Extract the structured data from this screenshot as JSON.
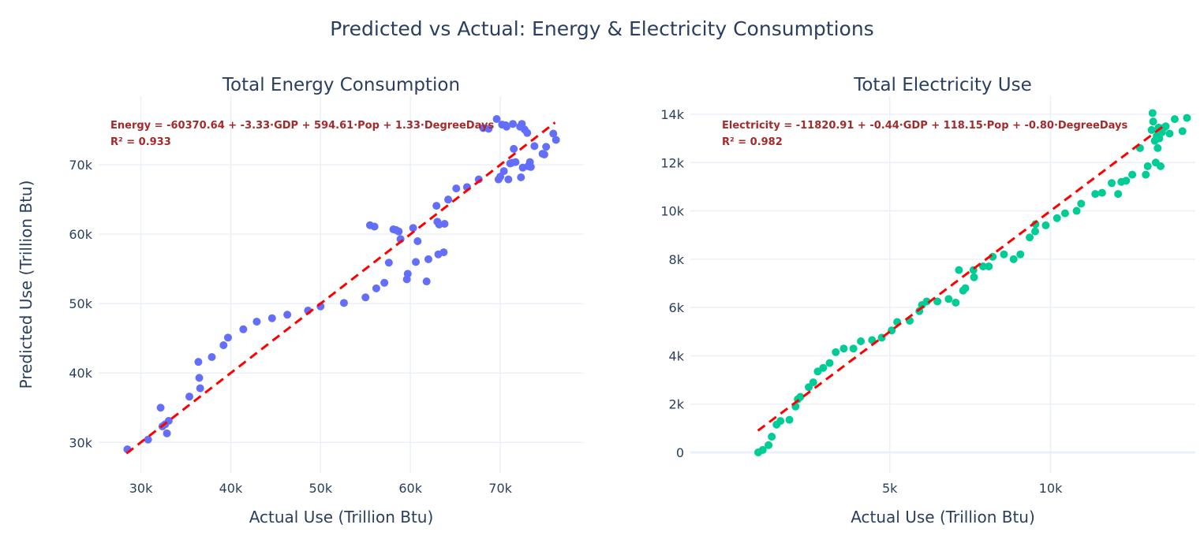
{
  "title": "Predicted vs Actual: Energy & Electricity Consumptions",
  "chart_data": [
    {
      "type": "scatter",
      "title": "Total Energy Consumption",
      "xlabel": "Actual Use (Trillion Btu)",
      "ylabel": "Predicted Use (Trillion Btu)",
      "xlim": [
        25300,
        79300
      ],
      "ylim": [
        25600,
        79900
      ],
      "xticks": [
        30000,
        40000,
        50000,
        60000,
        70000
      ],
      "xtick_labels": [
        "30k",
        "40k",
        "50k",
        "60k",
        "70k"
      ],
      "yticks": [
        30000,
        40000,
        50000,
        60000,
        70000
      ],
      "ytick_labels": [
        "30k",
        "40k",
        "50k",
        "60k",
        "70k"
      ],
      "grid": true,
      "marker_color": "#636efa",
      "fit_line": {
        "color": "#ff0000",
        "dash": true,
        "x": [
          28400,
          76100
        ],
        "y": [
          28400,
          76100
        ]
      },
      "annotation": [
        "Energy = -60370.64 + -3.33·GDP + 594.61·Pop + 1.33·DegreeDays",
        "R² = 0.933"
      ],
      "points": [
        [
          28500,
          29000
        ],
        [
          30800,
          30400
        ],
        [
          32200,
          35000
        ],
        [
          32400,
          32300
        ],
        [
          32700,
          32600
        ],
        [
          32900,
          31300
        ],
        [
          33100,
          33100
        ],
        [
          35400,
          36600
        ],
        [
          36400,
          41600
        ],
        [
          36500,
          39300
        ],
        [
          36600,
          37800
        ],
        [
          37900,
          42300
        ],
        [
          39200,
          44000
        ],
        [
          39700,
          45100
        ],
        [
          41400,
          46300
        ],
        [
          42900,
          47400
        ],
        [
          44600,
          47900
        ],
        [
          46300,
          48400
        ],
        [
          48600,
          49000
        ],
        [
          50000,
          49600
        ],
        [
          52600,
          50100
        ],
        [
          55000,
          50900
        ],
        [
          55500,
          61300
        ],
        [
          56000,
          61100
        ],
        [
          56200,
          52200
        ],
        [
          57100,
          53000
        ],
        [
          57600,
          55900
        ],
        [
          58100,
          60700
        ],
        [
          58400,
          60600
        ],
        [
          58700,
          60400
        ],
        [
          58900,
          59300
        ],
        [
          59600,
          53500
        ],
        [
          59700,
          54300
        ],
        [
          60300,
          60900
        ],
        [
          60600,
          56000
        ],
        [
          60800,
          59000
        ],
        [
          61800,
          53200
        ],
        [
          62000,
          56400
        ],
        [
          62900,
          64100
        ],
        [
          63000,
          61800
        ],
        [
          63100,
          57100
        ],
        [
          63200,
          61400
        ],
        [
          63700,
          57400
        ],
        [
          63800,
          61500
        ],
        [
          64200,
          65000
        ],
        [
          65100,
          66600
        ],
        [
          66300,
          66800
        ],
        [
          67600,
          67900
        ],
        [
          68100,
          75300
        ],
        [
          68700,
          75200
        ],
        [
          69600,
          76600
        ],
        [
          69800,
          67900
        ],
        [
          70000,
          68300
        ],
        [
          70200,
          75800
        ],
        [
          70400,
          69100
        ],
        [
          70600,
          75700
        ],
        [
          70700,
          75500
        ],
        [
          70900,
          67900
        ],
        [
          71100,
          70200
        ],
        [
          71300,
          70300
        ],
        [
          71400,
          75900
        ],
        [
          71500,
          72300
        ],
        [
          71700,
          70400
        ],
        [
          72200,
          75500
        ],
        [
          72300,
          68200
        ],
        [
          72400,
          75900
        ],
        [
          72500,
          69600
        ],
        [
          72700,
          75100
        ],
        [
          73000,
          74600
        ],
        [
          73100,
          69800
        ],
        [
          73300,
          70400
        ],
        [
          73400,
          69700
        ],
        [
          73800,
          72700
        ],
        [
          74700,
          71600
        ],
        [
          74900,
          71500
        ],
        [
          75100,
          72600
        ],
        [
          75900,
          74500
        ],
        [
          76200,
          73600
        ]
      ]
    },
    {
      "type": "scatter",
      "title": "Total Electricity Use",
      "xlabel": "Actual Use (Trillion Btu)",
      "ylabel": "",
      "xlim": [
        -1200,
        14500
      ],
      "ylim": [
        -850,
        14750
      ],
      "xticks": [
        5000,
        10000
      ],
      "xtick_labels": [
        "5k",
        "10k"
      ],
      "yticks": [
        0,
        2000,
        4000,
        6000,
        8000,
        10000,
        12000,
        14000
      ],
      "ytick_labels": [
        "0",
        "2k",
        "4k",
        "6k",
        "8k",
        "10k",
        "12k",
        "14k"
      ],
      "grid": true,
      "marker_color": "#00cc96",
      "fit_line": {
        "color": "#ff0000",
        "dash": true,
        "x": [
          900,
          13600
        ],
        "y": [
          900,
          13600
        ]
      },
      "annotation": [
        "Electricity = -11820.91 + -0.44·GDP + 118.15·Pop + -0.80·DegreeDays",
        "R² = 0.982"
      ],
      "points": [
        [
          910,
          0
        ],
        [
          1050,
          100
        ],
        [
          1230,
          300
        ],
        [
          1330,
          650
        ],
        [
          1480,
          1150
        ],
        [
          1600,
          1300
        ],
        [
          1880,
          1350
        ],
        [
          2070,
          1900
        ],
        [
          2140,
          2200
        ],
        [
          2220,
          2300
        ],
        [
          2480,
          2700
        ],
        [
          2620,
          2900
        ],
        [
          2760,
          3350
        ],
        [
          2930,
          3500
        ],
        [
          3130,
          3700
        ],
        [
          3320,
          4150
        ],
        [
          3570,
          4300
        ],
        [
          3870,
          4300
        ],
        [
          4100,
          4600
        ],
        [
          4450,
          4650
        ],
        [
          4750,
          4750
        ],
        [
          5060,
          5050
        ],
        [
          5230,
          5400
        ],
        [
          5620,
          5450
        ],
        [
          5920,
          5850
        ],
        [
          6000,
          6100
        ],
        [
          6150,
          6250
        ],
        [
          6480,
          6250
        ],
        [
          6830,
          6350
        ],
        [
          7050,
          6200
        ],
        [
          7150,
          7550
        ],
        [
          7280,
          6700
        ],
        [
          7350,
          6800
        ],
        [
          7600,
          7550
        ],
        [
          7620,
          7250
        ],
        [
          7900,
          7700
        ],
        [
          8080,
          7700
        ],
        [
          8200,
          8100
        ],
        [
          8550,
          8200
        ],
        [
          8850,
          8000
        ],
        [
          9060,
          8200
        ],
        [
          9350,
          8900
        ],
        [
          9520,
          9150
        ],
        [
          9530,
          9450
        ],
        [
          9850,
          9400
        ],
        [
          10200,
          9700
        ],
        [
          10450,
          9900
        ],
        [
          10810,
          10000
        ],
        [
          10950,
          10300
        ],
        [
          11390,
          10700
        ],
        [
          11600,
          10750
        ],
        [
          11900,
          11150
        ],
        [
          12100,
          10700
        ],
        [
          12200,
          11200
        ],
        [
          12350,
          11250
        ],
        [
          12540,
          11500
        ],
        [
          12780,
          12600
        ],
        [
          12960,
          11500
        ],
        [
          13020,
          11850
        ],
        [
          13140,
          13350
        ],
        [
          13170,
          14050
        ],
        [
          13190,
          13700
        ],
        [
          13240,
          12900
        ],
        [
          13270,
          12000
        ],
        [
          13300,
          13100
        ],
        [
          13330,
          12600
        ],
        [
          13360,
          13450
        ],
        [
          13380,
          13000
        ],
        [
          13420,
          11850
        ],
        [
          13460,
          13250
        ],
        [
          13530,
          13450
        ],
        [
          13580,
          13500
        ],
        [
          13700,
          13200
        ],
        [
          13860,
          13800
        ],
        [
          14100,
          13300
        ],
        [
          14240,
          13850
        ]
      ]
    }
  ]
}
